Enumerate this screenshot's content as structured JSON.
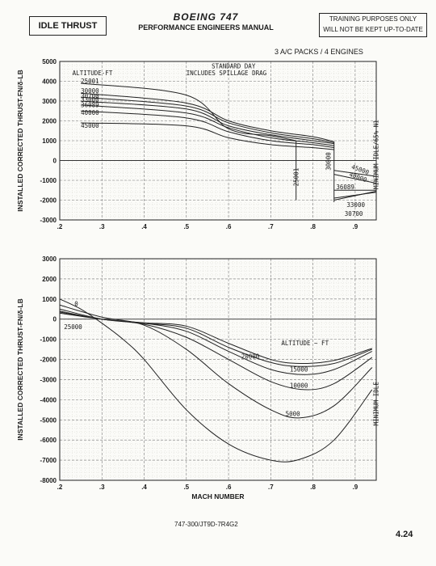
{
  "header": {
    "label": "IDLE THRUST",
    "title": "BOEING 747",
    "subtitle": "PERFORMANCE ENGINEERS MANUAL",
    "note_line1": "TRAINING PURPOSES ONLY",
    "note_line2": "WILL NOT BE KEPT UP-TO-DATE"
  },
  "config_label": "3 A/C PACKS / 4 ENGINES",
  "footer": {
    "code": "747-300/JT9D-7R4G2",
    "page": "4.24"
  },
  "chart_data": [
    {
      "type": "line",
      "ylabel": "INSTALLED CORRECTED THRUST-FN/δ-LB",
      "xlim": [
        0.2,
        0.95
      ],
      "ylim": [
        -3000,
        5000
      ],
      "x_ticks": [
        ".2",
        ".3",
        ".4",
        ".5",
        ".6",
        ".7",
        ".8",
        ".9"
      ],
      "y_ticks": [
        "5000",
        "4000",
        "3000",
        "2000",
        "1000",
        "0",
        "-1000",
        "-2000",
        "-3000"
      ],
      "annotations": [
        "STANDARD DAY",
        "INCLUDES SPILLAGE DRAG",
        "MINIMUM IDLE/65% N1"
      ],
      "legend_title": "ALTITUDE-FT",
      "series": [
        {
          "name": "25001",
          "x": [
            0.25,
            0.5,
            0.6,
            0.7,
            0.76
          ],
          "y": [
            3900,
            3300,
            1600,
            1250,
            1000
          ]
        },
        {
          "name": "30000",
          "x": [
            0.25,
            0.5,
            0.6,
            0.7,
            0.8,
            0.85
          ],
          "y": [
            3400,
            2900,
            2000,
            1500,
            1200,
            950
          ]
        },
        {
          "name": "30700",
          "x": [
            0.25,
            0.5,
            0.6,
            0.7,
            0.8,
            0.85
          ],
          "y": [
            3200,
            2750,
            1900,
            1400,
            1100,
            900
          ]
        },
        {
          "name": "33000",
          "x": [
            0.25,
            0.5,
            0.6,
            0.7,
            0.8,
            0.85
          ],
          "y": [
            3000,
            2600,
            1750,
            1300,
            1000,
            850
          ]
        },
        {
          "name": "36089",
          "x": [
            0.25,
            0.5,
            0.6,
            0.7,
            0.8,
            0.85
          ],
          "y": [
            2800,
            2400,
            1650,
            1150,
            900,
            750
          ]
        },
        {
          "name": "40000",
          "x": [
            0.25,
            0.5,
            0.6,
            0.7,
            0.8,
            0.85
          ],
          "y": [
            2500,
            2150,
            1450,
            1000,
            800,
            650
          ]
        },
        {
          "name": "45000",
          "x": [
            0.25,
            0.5,
            0.6,
            0.7,
            0.8,
            0.85
          ],
          "y": [
            1900,
            1750,
            1150,
            800,
            650,
            550
          ]
        }
      ],
      "min_idle_labels": [
        "45000",
        "40000",
        "36089",
        "33000",
        "30700",
        "30000",
        "25001"
      ],
      "min_idle": [
        {
          "name": "25001",
          "x": [
            0.76,
            0.76
          ],
          "y": [
            1000,
            -2000
          ]
        },
        {
          "name": "30000",
          "x": [
            0.85,
            0.85
          ],
          "y": [
            950,
            -2100
          ]
        },
        {
          "name": "45000",
          "x": [
            0.85,
            0.95
          ],
          "y": [
            -500,
            -800
          ]
        },
        {
          "name": "40000",
          "x": [
            0.85,
            0.95
          ],
          "y": [
            -700,
            -1150
          ]
        },
        {
          "name": "36089",
          "x": [
            0.85,
            0.95
          ],
          "y": [
            -1500,
            -1500
          ]
        },
        {
          "name": "33000",
          "x": [
            0.85,
            0.95
          ],
          "y": [
            -1900,
            -1600
          ]
        },
        {
          "name": "30700",
          "x": [
            0.85,
            0.95
          ],
          "y": [
            -2000,
            -1550
          ]
        }
      ]
    },
    {
      "type": "line",
      "xlabel": "MACH NUMBER",
      "ylabel": "INSTALLED CORRECTED THRUST-FN/δ-LB",
      "xlim": [
        0.2,
        0.95
      ],
      "ylim": [
        -8000,
        3000
      ],
      "x_ticks": [
        ".2",
        ".3",
        ".4",
        ".5",
        ".6",
        ".7",
        ".8",
        ".9"
      ],
      "y_ticks": [
        "3000",
        "2000",
        "1000",
        "0",
        "-1000",
        "-2000",
        "-3000",
        "-4000",
        "-5000",
        "-6000",
        "-7000",
        "-8000"
      ],
      "annotations": [
        "MINIMUM IDLE"
      ],
      "legend_title": "ALTITUDE ~ FT",
      "series": [
        {
          "name": "0",
          "x": [
            0.2,
            0.25,
            0.3,
            0.35,
            0.4,
            0.5,
            0.6,
            0.7,
            0.77,
            0.85,
            0.94
          ],
          "y": [
            1000,
            500,
            -200,
            -1000,
            -2000,
            -4500,
            -6200,
            -7000,
            -6950,
            -6000,
            -3500
          ]
        },
        {
          "name": "5000",
          "x": [
            0.2,
            0.3,
            0.4,
            0.5,
            0.6,
            0.7,
            0.77,
            0.85,
            0.94
          ],
          "y": [
            700,
            100,
            -300,
            -1500,
            -3200,
            -4500,
            -4900,
            -4300,
            -2400
          ]
        },
        {
          "name": "10000",
          "x": [
            0.2,
            0.3,
            0.4,
            0.5,
            0.6,
            0.7,
            0.78,
            0.85,
            0.94
          ],
          "y": [
            500,
            0,
            -250,
            -900,
            -2000,
            -3100,
            -3500,
            -3200,
            -1900
          ]
        },
        {
          "name": "15000",
          "x": [
            0.2,
            0.3,
            0.4,
            0.5,
            0.6,
            0.7,
            0.78,
            0.85,
            0.94
          ],
          "y": [
            400,
            0,
            -200,
            -600,
            -1600,
            -2500,
            -2750,
            -2500,
            -1600
          ]
        },
        {
          "name": "20000",
          "x": [
            0.2,
            0.3,
            0.4,
            0.5,
            0.6,
            0.7,
            0.77,
            0.85,
            0.94
          ],
          "y": [
            350,
            0,
            -200,
            -450,
            -1400,
            -2150,
            -2350,
            -2200,
            -1500
          ]
        },
        {
          "name": "25000",
          "x": [
            0.2,
            0.3,
            0.4,
            0.5,
            0.6,
            0.7,
            0.77,
            0.85,
            0.94
          ],
          "y": [
            300,
            0,
            -180,
            -350,
            -1200,
            -2000,
            -2200,
            -2050,
            -1450
          ]
        }
      ]
    }
  ]
}
